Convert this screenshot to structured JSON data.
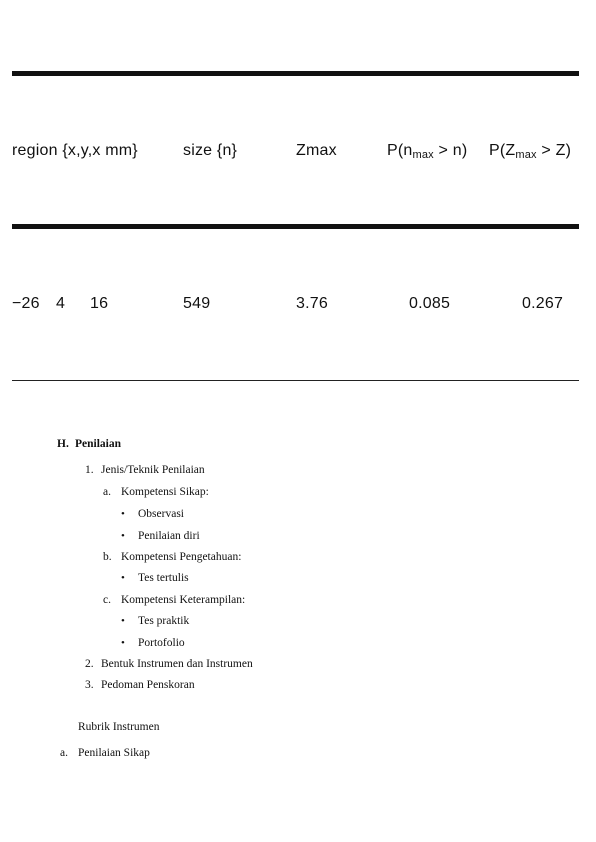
{
  "table": {
    "headers": {
      "region": "region {x,y,x mm}",
      "size": "size {n}",
      "zmax": "Zmax",
      "p_n_prefix": "P(n",
      "p_n_sub": "max",
      "p_n_suffix": " > n)",
      "p_z_prefix": "P(Z",
      "p_z_sub": "max",
      "p_z_suffix": " > Z)"
    },
    "row": {
      "x": "−26",
      "y": "4",
      "z": "16",
      "size": "549",
      "zmax": "3.76",
      "p_n": "0.085",
      "p_z": "0.267"
    }
  },
  "document": {
    "section_h": "H.",
    "section_h_title": "Penilaian",
    "item1_num": "1.",
    "item1": "Jenis/Teknik Penilaian",
    "item1a_letter": "a.",
    "item1a": "Kompetensi Sikap:",
    "item1a_b1": "Observasi",
    "item1a_b2": "Penilaian diri",
    "item1b_letter": "b.",
    "item1b": "Kompetensi Pengetahuan:",
    "item1b_b1": "Tes tertulis",
    "item1c_letter": "c.",
    "item1c": "Kompetensi Keterampilan:",
    "item1c_b1": "Tes praktik",
    "item1c_b2": "Portofolio",
    "item2_num": "2.",
    "item2": "Bentuk Instrumen dan Instrumen",
    "item3_num": "3.",
    "item3": "Pedoman Penskoran",
    "rubrik": "Rubrik Instrumen",
    "sub_a_letter": "a.",
    "sub_a": "Penilaian Sikap",
    "bullet_glyph": "•"
  }
}
